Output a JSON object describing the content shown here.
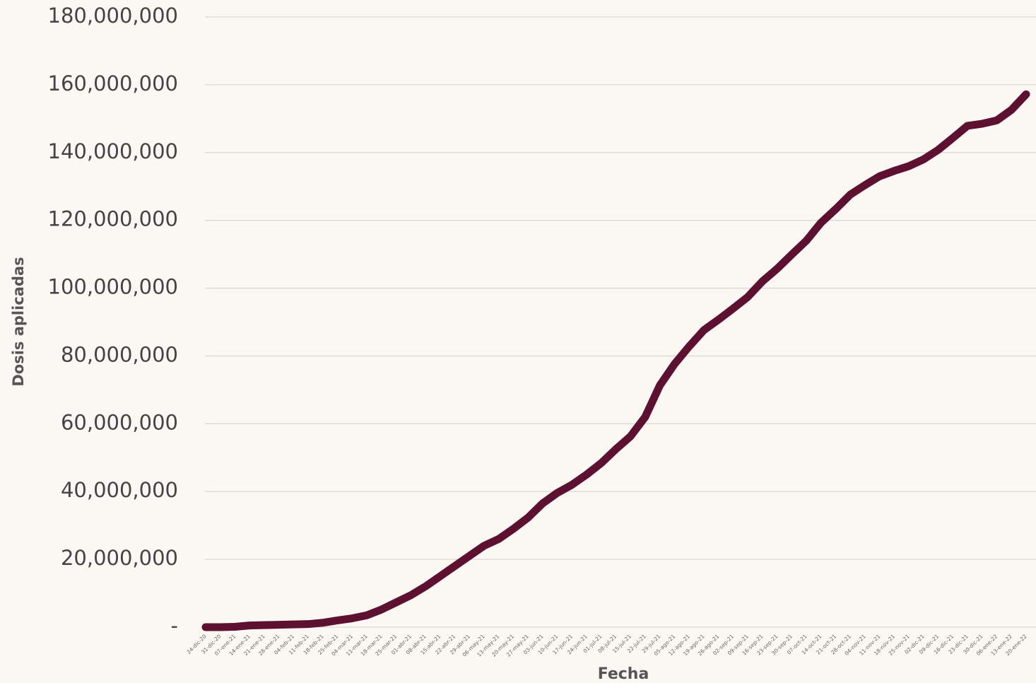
{
  "chart_data": {
    "type": "line",
    "y_label": "Dosis aplicadas",
    "x_label": "Fecha",
    "categories": [
      "24-dic-20",
      "31-dic-20",
      "07-ene-21",
      "14-ene-21",
      "21-ene-21",
      "28-ene-21",
      "04-feb-21",
      "11-feb-21",
      "18-feb-21",
      "25-feb-21",
      "04-mar-21",
      "11-mar-21",
      "18-mar-21",
      "25-mar-21",
      "01-abr-21",
      "08-abr-21",
      "15-abr-21",
      "22-abr-21",
      "29-abr-21",
      "06-may-21",
      "13-may-21",
      "20-may-21",
      "27-may-21",
      "03-jun-21",
      "10-jun-21",
      "17-jun-21",
      "24-jun-21",
      "01-jul-21",
      "08-jul-21",
      "15-jul-21",
      "22-jul-21",
      "29-jul-21",
      "05-ago-21",
      "12-ago-21",
      "19-ago-21",
      "26-ago-21",
      "02-sep-21",
      "09-sep-21",
      "16-sep-21",
      "23-sep-21",
      "30-sep-21",
      "07-oct-21",
      "14-oct-21",
      "21-oct-21",
      "28-oct-21",
      "04-nov-21",
      "11-nov-21",
      "18-nov-21",
      "25-nov-21",
      "02-dic-21",
      "09-dic-21",
      "16-dic-21",
      "23-dic-21",
      "30-dic-21",
      "06-ene-22",
      "13-ene-22",
      "20-ene-22"
    ],
    "series": [
      {
        "color": "#5e1030",
        "values": [
          0,
          0,
          100000,
          500000,
          600000,
          700000,
          800000,
          900000,
          1300000,
          2000000,
          2600000,
          3500000,
          5200000,
          7300000,
          9400000,
          12000000,
          15000000,
          18000000,
          21000000,
          24000000,
          26000000,
          29000000,
          32300000,
          36500000,
          39600000,
          42000000,
          45000000,
          48400000,
          52500000,
          56300000,
          62000000,
          71300000,
          77600000,
          82800000,
          87600000,
          90700000,
          94000000,
          97400000,
          102000000,
          105700000,
          109900000,
          114000000,
          119300000,
          123300000,
          127600000,
          130400000,
          133000000,
          134600000,
          136000000,
          138000000,
          140800000,
          144300000,
          147900000,
          148500000,
          149500000,
          152600000,
          157200000
        ]
      }
    ],
    "ylim": [
      0,
      180000000
    ],
    "yticks": [
      {
        "value": 0,
        "label": "-"
      },
      {
        "value": 20000000,
        "label": "20,000,000"
      },
      {
        "value": 40000000,
        "label": "40,000,000"
      },
      {
        "value": 60000000,
        "label": "60,000,000"
      },
      {
        "value": 80000000,
        "label": "80,000,000"
      },
      {
        "value": 100000000,
        "label": "100,000,000"
      },
      {
        "value": 120000000,
        "label": "120,000,000"
      },
      {
        "value": 140000000,
        "label": "140,000,000"
      },
      {
        "value": 160000000,
        "label": "160,000,000"
      },
      {
        "value": 180000000,
        "label": "180,000,000"
      }
    ],
    "grid": true
  }
}
